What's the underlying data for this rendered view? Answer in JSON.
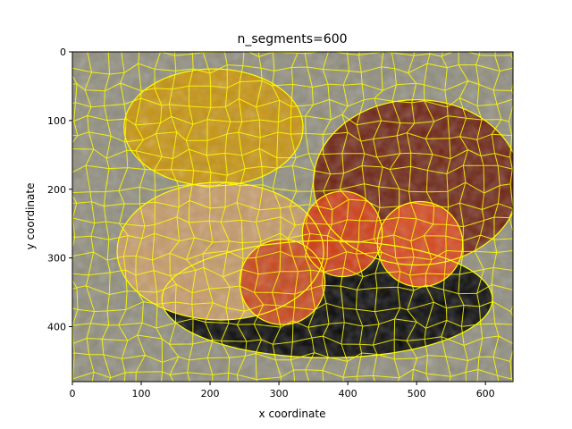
{
  "chart_data": {
    "type": "image",
    "title": "n_segments=600",
    "xlabel": "x coordinate",
    "ylabel": "y coordinate",
    "xlim": [
      0,
      640
    ],
    "ylim": [
      480,
      0
    ],
    "y_inverted": true,
    "xticks": [
      0,
      100,
      200,
      300,
      400,
      500,
      600
    ],
    "yticks": [
      0,
      100,
      200,
      300,
      400
    ],
    "grid": false,
    "boundary_color": "#ffff00",
    "image_content": {
      "background": "#8f8d7e",
      "objects": [
        {
          "name": "leaf-top",
          "color": "#c7930f",
          "cx": 205,
          "cy": 110,
          "rx": 130,
          "ry": 85
        },
        {
          "name": "leaf-right",
          "color": "#6e2414",
          "cx": 500,
          "cy": 190,
          "rx": 150,
          "ry": 120
        },
        {
          "name": "shadow",
          "color": "#070707",
          "cx": 370,
          "cy": 360,
          "rx": 240,
          "ry": 85
        },
        {
          "name": "shell",
          "color": "#c69a68",
          "cx": 215,
          "cy": 290,
          "rx": 150,
          "ry": 100
        },
        {
          "name": "apple-left",
          "color": "#c8471c",
          "cx": 305,
          "cy": 335,
          "rx": 62,
          "ry": 62
        },
        {
          "name": "apple-middle",
          "color": "#cf3a13",
          "cx": 392,
          "cy": 265,
          "rx": 58,
          "ry": 62
        },
        {
          "name": "apple-right",
          "color": "#d7461c",
          "cx": 505,
          "cy": 280,
          "rx": 62,
          "ry": 62
        }
      ]
    }
  }
}
